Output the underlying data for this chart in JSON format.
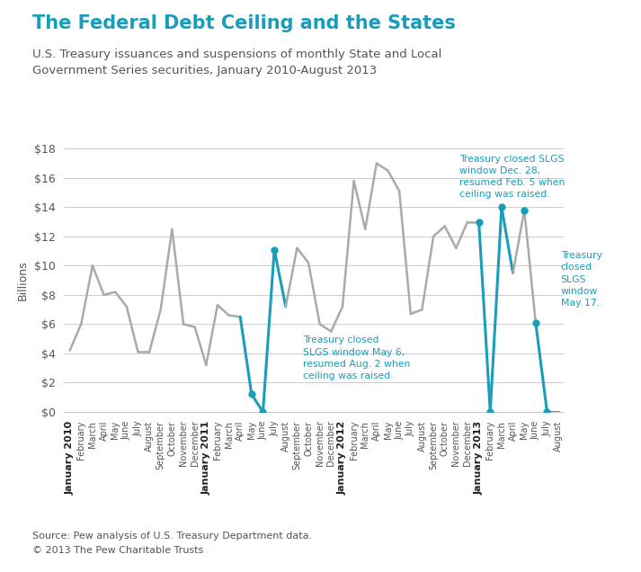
{
  "title": "The Federal Debt Ceiling and the States",
  "subtitle": "U.S. Treasury issuances and suspensions of monthly State and Local\nGovernment Series securities, January 2010-August 2013",
  "title_color": "#1a9dba",
  "subtitle_color": "#555555",
  "ylabel": "Billions",
  "source": "Source: Pew analysis of U.S. Treasury Department data.",
  "copyright": "© 2013 The Pew Charitable Trusts",
  "ylim": [
    0,
    18
  ],
  "yticks": [
    0,
    2,
    4,
    6,
    8,
    10,
    12,
    14,
    16,
    18
  ],
  "ytick_labels": [
    "$0",
    "$2",
    "$4",
    "$6",
    "$8",
    "$10",
    "$12",
    "$14",
    "$16",
    "$18"
  ],
  "gray_color": "#aaaaaa",
  "blue_color": "#1a9dba",
  "months": [
    "January 2010",
    "February",
    "March",
    "April",
    "May",
    "June",
    "July",
    "August",
    "September",
    "October",
    "November",
    "December",
    "January 2011",
    "February",
    "March",
    "April",
    "May",
    "June",
    "July",
    "August",
    "September",
    "October",
    "November",
    "December",
    "January 2012",
    "February",
    "March",
    "April",
    "May",
    "June",
    "July",
    "August",
    "September",
    "October",
    "November",
    "December",
    "January 2013",
    "February",
    "March",
    "April",
    "May",
    "June",
    "July",
    "August"
  ],
  "values": [
    4.2,
    6.0,
    10.0,
    8.0,
    8.2,
    7.2,
    4.1,
    4.1,
    7.0,
    12.5,
    6.0,
    5.8,
    3.2,
    7.3,
    6.6,
    6.5,
    1.2,
    0.0,
    11.1,
    7.2,
    11.2,
    10.2,
    6.0,
    5.5,
    7.2,
    15.8,
    12.5,
    17.0,
    16.5,
    15.1,
    6.7,
    7.0,
    12.0,
    12.7,
    11.2,
    13.0,
    13.0,
    0.0,
    14.0,
    9.5,
    13.8,
    6.1,
    0.0,
    0.0
  ],
  "segment_colors": [
    "gray",
    "gray",
    "gray",
    "gray",
    "gray",
    "gray",
    "gray",
    "gray",
    "gray",
    "gray",
    "gray",
    "gray",
    "gray",
    "gray",
    "gray",
    "gray",
    "blue",
    "blue",
    "blue",
    "gray",
    "gray",
    "gray",
    "gray",
    "gray",
    "gray",
    "gray",
    "gray",
    "gray",
    "gray",
    "gray",
    "gray",
    "gray",
    "gray",
    "gray",
    "gray",
    "gray",
    "gray",
    "blue",
    "blue",
    "gray",
    "gray",
    "gray",
    "blue",
    "blue"
  ],
  "annot1_text": "Treasury closed\nSLGS window May 6,\nresumed Aug. 2 when\nceiling was raised.",
  "annot2_text": "Treasury closed SLGS\nwindow Dec. 28,\nresumed Feb. 5 when\nceiling was raised.",
  "annot3_text": "Treasury\nclosed\nSLGS\nwindow\nMay 17.",
  "bg_color": "#ffffff"
}
